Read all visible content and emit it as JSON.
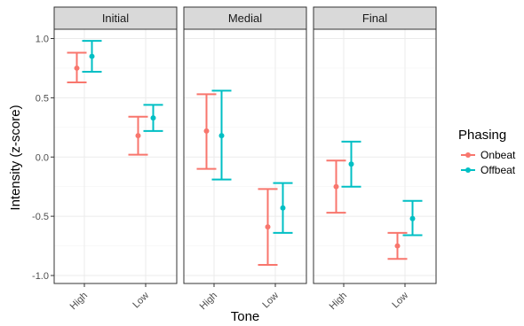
{
  "chart_data": {
    "type": "errorbar",
    "panels": [
      "Initial",
      "Medial",
      "Final"
    ],
    "categories": [
      "High",
      "Low"
    ],
    "xlabel": "Tone",
    "ylabel": "Intensity (z-score)",
    "ylim": [
      -1.0,
      1.0
    ],
    "yticks": [
      -1.0,
      -0.5,
      0.0,
      0.5,
      1.0
    ],
    "ytick_labels": [
      "-1.0",
      "-0.5",
      "0.0",
      "0.5",
      "1.0"
    ],
    "grid": true,
    "legend": {
      "title": "Phasing",
      "position": "right"
    },
    "series": [
      {
        "name": "Onbeat",
        "color": "#F8766D",
        "data": {
          "Initial": {
            "High": {
              "mean": 0.75,
              "lower": 0.63,
              "upper": 0.88
            },
            "Low": {
              "mean": 0.18,
              "lower": 0.02,
              "upper": 0.34
            }
          },
          "Medial": {
            "High": {
              "mean": 0.22,
              "lower": -0.1,
              "upper": 0.53
            },
            "Low": {
              "mean": -0.59,
              "lower": -0.91,
              "upper": -0.27
            }
          },
          "Final": {
            "High": {
              "mean": -0.25,
              "lower": -0.47,
              "upper": -0.03
            },
            "Low": {
              "mean": -0.75,
              "lower": -0.86,
              "upper": -0.64
            }
          }
        }
      },
      {
        "name": "Offbeat",
        "color": "#00BFC4",
        "data": {
          "Initial": {
            "High": {
              "mean": 0.85,
              "lower": 0.72,
              "upper": 0.98
            },
            "Low": {
              "mean": 0.33,
              "lower": 0.22,
              "upper": 0.44
            }
          },
          "Medial": {
            "High": {
              "mean": 0.18,
              "lower": -0.19,
              "upper": 0.56
            },
            "Low": {
              "mean": -0.43,
              "lower": -0.64,
              "upper": -0.22
            }
          },
          "Final": {
            "High": {
              "mean": -0.06,
              "lower": -0.25,
              "upper": 0.13
            },
            "Low": {
              "mean": -0.52,
              "lower": -0.66,
              "upper": -0.37
            }
          }
        }
      }
    ]
  }
}
